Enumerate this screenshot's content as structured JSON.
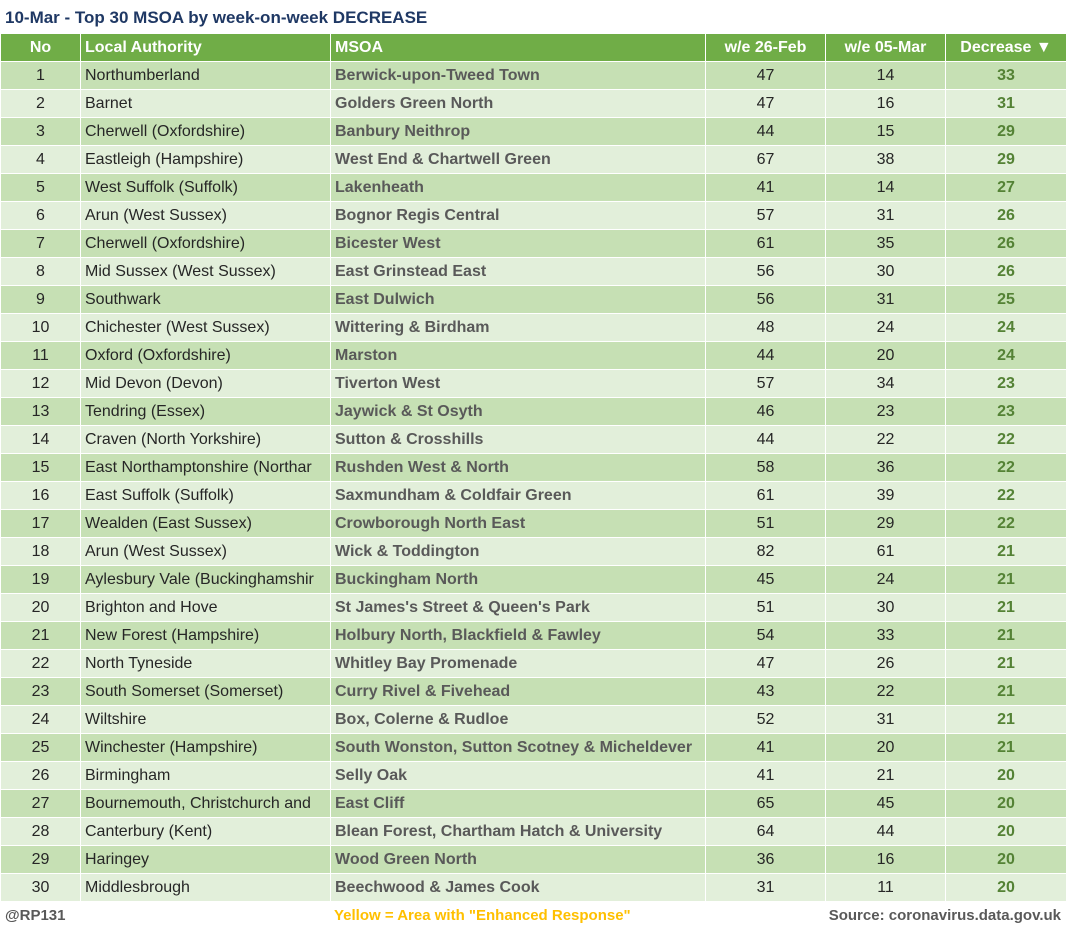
{
  "title": "10-Mar - Top 30 MSOA by week-on-week DECREASE",
  "table": {
    "columns": [
      "No",
      "Local Authority",
      "MSOA",
      "w/e 26-Feb",
      "w/e 05-Mar",
      "Decrease ▼"
    ],
    "rows": [
      [
        1,
        "Northumberland",
        "Berwick-upon-Tweed Town",
        47,
        14,
        33
      ],
      [
        2,
        "Barnet",
        "Golders Green North",
        47,
        16,
        31
      ],
      [
        3,
        "Cherwell (Oxfordshire)",
        "Banbury Neithrop",
        44,
        15,
        29
      ],
      [
        4,
        "Eastleigh (Hampshire)",
        "West End & Chartwell Green",
        67,
        38,
        29
      ],
      [
        5,
        "West Suffolk (Suffolk)",
        "Lakenheath",
        41,
        14,
        27
      ],
      [
        6,
        "Arun (West Sussex)",
        "Bognor Regis Central",
        57,
        31,
        26
      ],
      [
        7,
        "Cherwell (Oxfordshire)",
        "Bicester West",
        61,
        35,
        26
      ],
      [
        8,
        "Mid Sussex (West Sussex)",
        "East Grinstead East",
        56,
        30,
        26
      ],
      [
        9,
        "Southwark",
        "East Dulwich",
        56,
        31,
        25
      ],
      [
        10,
        "Chichester (West Sussex)",
        "Wittering & Birdham",
        48,
        24,
        24
      ],
      [
        11,
        "Oxford (Oxfordshire)",
        "Marston",
        44,
        20,
        24
      ],
      [
        12,
        "Mid Devon (Devon)",
        "Tiverton West",
        57,
        34,
        23
      ],
      [
        13,
        "Tendring (Essex)",
        "Jaywick & St Osyth",
        46,
        23,
        23
      ],
      [
        14,
        "Craven (North Yorkshire)",
        "Sutton & Crosshills",
        44,
        22,
        22
      ],
      [
        15,
        "East Northamptonshire (Northar",
        "Rushden West & North",
        58,
        36,
        22
      ],
      [
        16,
        "East Suffolk (Suffolk)",
        "Saxmundham & Coldfair Green",
        61,
        39,
        22
      ],
      [
        17,
        "Wealden (East Sussex)",
        "Crowborough North East",
        51,
        29,
        22
      ],
      [
        18,
        "Arun (West Sussex)",
        "Wick & Toddington",
        82,
        61,
        21
      ],
      [
        19,
        "Aylesbury Vale (Buckinghamshir",
        "Buckingham North",
        45,
        24,
        21
      ],
      [
        20,
        "Brighton and Hove",
        "St James's Street & Queen's Park",
        51,
        30,
        21
      ],
      [
        21,
        "New Forest (Hampshire)",
        "Holbury North, Blackfield & Fawley",
        54,
        33,
        21
      ],
      [
        22,
        "North Tyneside",
        "Whitley Bay Promenade",
        47,
        26,
        21
      ],
      [
        23,
        "South Somerset (Somerset)",
        "Curry Rivel & Fivehead",
        43,
        22,
        21
      ],
      [
        24,
        "Wiltshire",
        "Box, Colerne & Rudloe",
        52,
        31,
        21
      ],
      [
        25,
        "Winchester (Hampshire)",
        "South Wonston, Sutton Scotney & Micheldever",
        41,
        20,
        21
      ],
      [
        26,
        "Birmingham",
        "Selly Oak",
        41,
        21,
        20
      ],
      [
        27,
        "Bournemouth, Christchurch and",
        "East Cliff",
        65,
        45,
        20
      ],
      [
        28,
        "Canterbury (Kent)",
        "Blean Forest, Chartham Hatch & University",
        64,
        44,
        20
      ],
      [
        29,
        "Haringey",
        "Wood Green North",
        36,
        16,
        20
      ],
      [
        30,
        "Middlesbrough",
        "Beechwood & James Cook",
        31,
        11,
        20
      ]
    ]
  },
  "footer": {
    "handle": "@RP131",
    "note": "Yellow = Area with \"Enhanced Response\"",
    "source": "Source: coronavirus.data.gov.uk"
  }
}
